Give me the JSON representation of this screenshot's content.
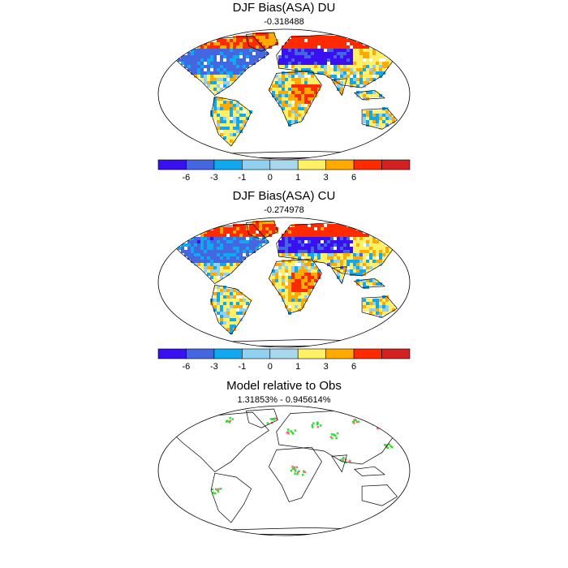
{
  "chart_data": [
    {
      "type": "heatmap",
      "title": "DJF Bias(ASA) DU",
      "subtitle": "-0.318488",
      "colorbar": {
        "levels": [
          "-6",
          "-3",
          "-1",
          "0",
          "1",
          "3",
          "6"
        ],
        "colors": [
          "#3a10f0",
          "#4466e0",
          "#10a8f0",
          "#90d0f0",
          "#a8d8f0",
          "#fff066",
          "#ffaa00",
          "#ff2a00",
          "#d42020"
        ]
      }
    },
    {
      "type": "heatmap",
      "title": "DJF Bias(ASA) CU",
      "subtitle": "-0.274978",
      "colorbar": {
        "levels": [
          "-6",
          "-3",
          "-1",
          "0",
          "1",
          "3",
          "6"
        ],
        "colors": [
          "#3a10f0",
          "#4466e0",
          "#10a8f0",
          "#90d0f0",
          "#a8d8f0",
          "#fff066",
          "#ffaa00",
          "#ff2a00",
          "#d42020"
        ]
      }
    },
    {
      "type": "heatmap",
      "title": "Model relative to Obs",
      "subtitle": "1.31853% - 0.945614%"
    }
  ]
}
